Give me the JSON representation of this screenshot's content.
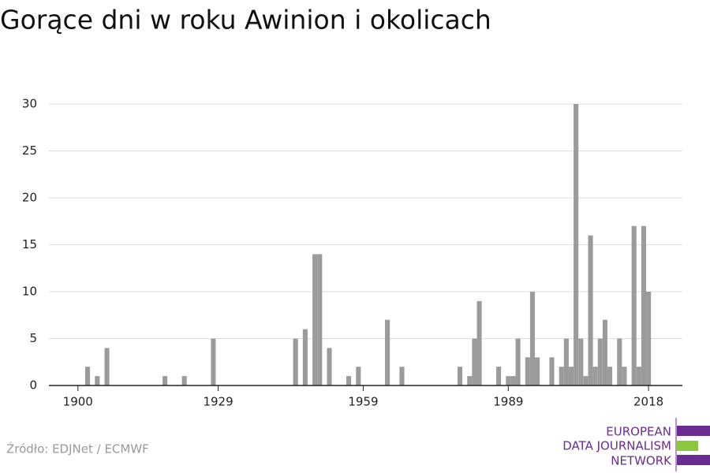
{
  "chart_data": {
    "type": "bar",
    "title": "Gorące dni w roku Awinion i okolicach",
    "x": [
      1902,
      1904,
      1906,
      1918,
      1922,
      1928,
      1945,
      1947,
      1949,
      1950,
      1952,
      1956,
      1958,
      1964,
      1967,
      1979,
      1981,
      1982,
      1983,
      1987,
      1989,
      1990,
      1991,
      1993,
      1994,
      1995,
      1998,
      2000,
      2001,
      2002,
      2003,
      2004,
      2005,
      2006,
      2007,
      2008,
      2009,
      2010,
      2012,
      2013,
      2015,
      2016,
      2017,
      2018
    ],
    "values": [
      2,
      1,
      4,
      1,
      1,
      5,
      5,
      6,
      14,
      14,
      4,
      1,
      2,
      7,
      2,
      2,
      1,
      5,
      9,
      2,
      1,
      1,
      5,
      3,
      10,
      3,
      3,
      2,
      5,
      2,
      30,
      5,
      1,
      16,
      2,
      5,
      7,
      2,
      5,
      2,
      17,
      2,
      17,
      10
    ],
    "color": "#9b9b9b",
    "xlim": [
      1894,
      2025
    ],
    "xticks": [
      1900,
      1929,
      1959,
      1989,
      2018
    ],
    "ylim": [
      0,
      30
    ],
    "yticks": [
      0,
      5,
      10,
      15,
      20,
      25,
      30
    ],
    "grid": true,
    "source": "Źródło: EDJNet / ECMWF",
    "logo": [
      "EUROPEAN",
      "DATA JOURNALISM",
      "NETWORK"
    ]
  }
}
